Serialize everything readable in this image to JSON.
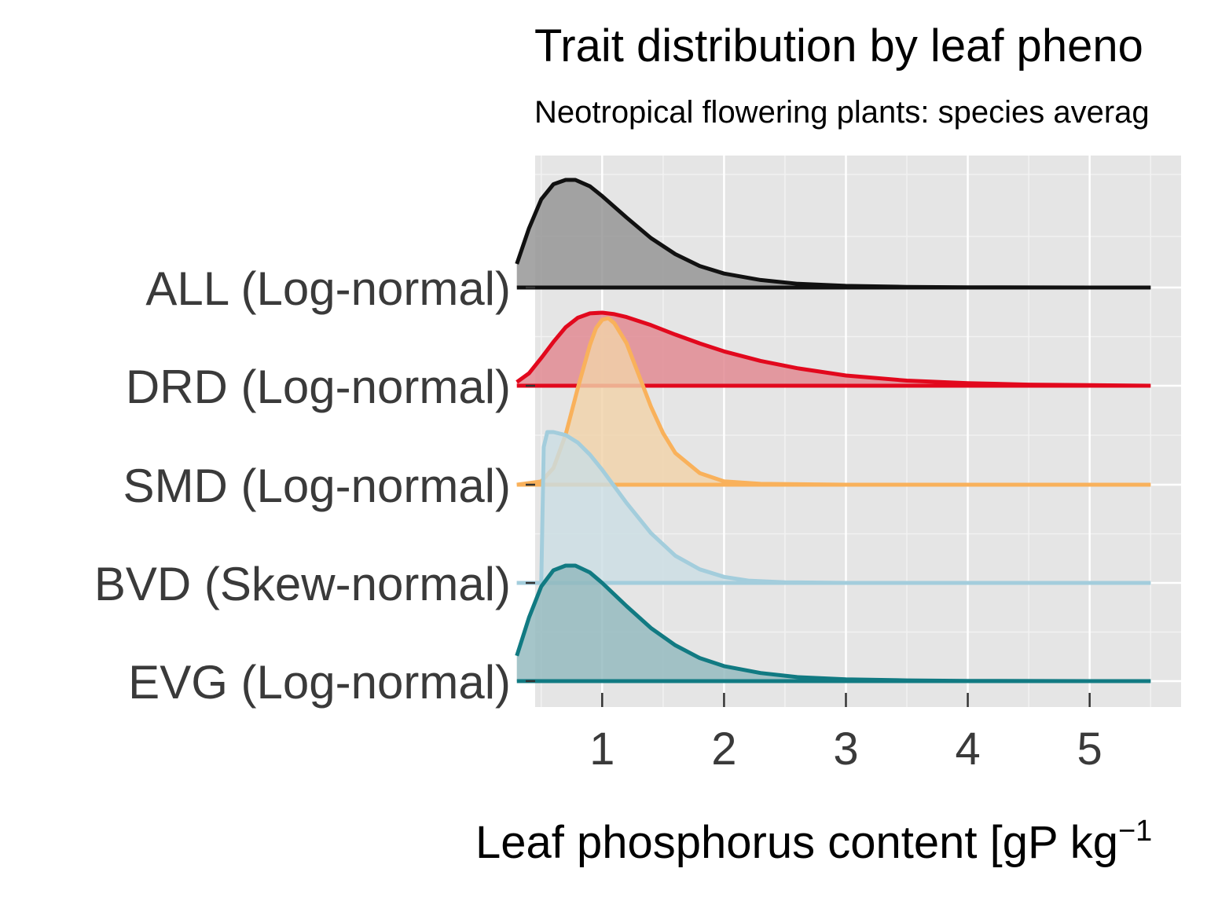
{
  "chart_data": {
    "type": "area",
    "title": "Trait distribution by leaf pheno",
    "subtitle": "Neotropical flowering plants: species averag",
    "xlabel": "Leaf phosphorus content [gP kg",
    "xlabel_superscript": "−1",
    "ylabel": "",
    "xlim": [
      0.45,
      5.75
    ],
    "x_ticks": [
      1,
      2,
      3,
      4,
      5
    ],
    "x_tick_labels": [
      "1",
      "2",
      "3",
      "4",
      "5"
    ],
    "grid": true,
    "background": "#e5e5e5",
    "series": [
      {
        "name": "ALL (Log-normal)",
        "color": "#111111",
        "fill": "#929292",
        "x": [
          0.3,
          0.4,
          0.5,
          0.6,
          0.7,
          0.78,
          0.9,
          1.0,
          1.2,
          1.4,
          1.6,
          1.8,
          2.0,
          2.3,
          2.6,
          3.0,
          3.5,
          4.0,
          5.0,
          5.5
        ],
        "density": [
          0.22,
          0.55,
          0.82,
          0.96,
          1.0,
          1.0,
          0.94,
          0.85,
          0.65,
          0.46,
          0.31,
          0.2,
          0.13,
          0.07,
          0.035,
          0.015,
          0.006,
          0.002,
          0.0,
          0.0
        ]
      },
      {
        "name": "DRD (Log-normal)",
        "color": "#e2081d",
        "fill": "#e0868f",
        "x": [
          0.3,
          0.4,
          0.5,
          0.6,
          0.7,
          0.8,
          0.9,
          1.0,
          1.1,
          1.2,
          1.4,
          1.6,
          1.8,
          2.0,
          2.3,
          2.6,
          3.0,
          3.5,
          4.0,
          4.5,
          5.0,
          5.5
        ],
        "density": [
          0.05,
          0.17,
          0.38,
          0.6,
          0.8,
          0.93,
          0.99,
          1.0,
          0.98,
          0.94,
          0.83,
          0.7,
          0.58,
          0.47,
          0.34,
          0.24,
          0.14,
          0.07,
          0.035,
          0.015,
          0.007,
          0.0
        ]
      },
      {
        "name": "SMD (Log-normal)",
        "color": "#f9b15b",
        "fill": "#f0d2a8",
        "x": [
          0.3,
          0.5,
          0.6,
          0.7,
          0.8,
          0.9,
          0.95,
          1.0,
          1.05,
          1.1,
          1.2,
          1.3,
          1.4,
          1.5,
          1.6,
          1.8,
          2.0,
          2.3,
          3.0,
          5.5
        ],
        "density": [
          0.0,
          0.02,
          0.1,
          0.3,
          0.58,
          0.84,
          0.94,
          0.99,
          1.0,
          0.97,
          0.85,
          0.66,
          0.47,
          0.31,
          0.19,
          0.07,
          0.02,
          0.005,
          0.0,
          0.0
        ]
      },
      {
        "name": "BVD (Skew-normal)",
        "color": "#a3cddc",
        "fill": "#cbdde3",
        "x": [
          0.3,
          0.5,
          0.52,
          0.55,
          0.6,
          0.7,
          0.8,
          0.9,
          1.0,
          1.1,
          1.2,
          1.4,
          1.6,
          1.8,
          2.0,
          2.2,
          2.5,
          3.0,
          5.5
        ],
        "density": [
          0.0,
          0.0,
          0.9,
          1.0,
          1.0,
          0.98,
          0.93,
          0.85,
          0.75,
          0.64,
          0.53,
          0.33,
          0.18,
          0.09,
          0.04,
          0.015,
          0.004,
          0.0,
          0.0
        ]
      },
      {
        "name": "EVG (Log-normal)",
        "color": "#117a82",
        "fill": "#91b8bd",
        "x": [
          0.3,
          0.4,
          0.5,
          0.6,
          0.7,
          0.78,
          0.9,
          1.0,
          1.2,
          1.4,
          1.6,
          1.8,
          2.0,
          2.3,
          2.6,
          3.0,
          3.5,
          4.0,
          5.0,
          5.5
        ],
        "density": [
          0.22,
          0.55,
          0.82,
          0.96,
          1.0,
          1.0,
          0.94,
          0.85,
          0.65,
          0.46,
          0.31,
          0.2,
          0.13,
          0.07,
          0.035,
          0.015,
          0.006,
          0.002,
          0.0,
          0.0
        ]
      }
    ]
  }
}
